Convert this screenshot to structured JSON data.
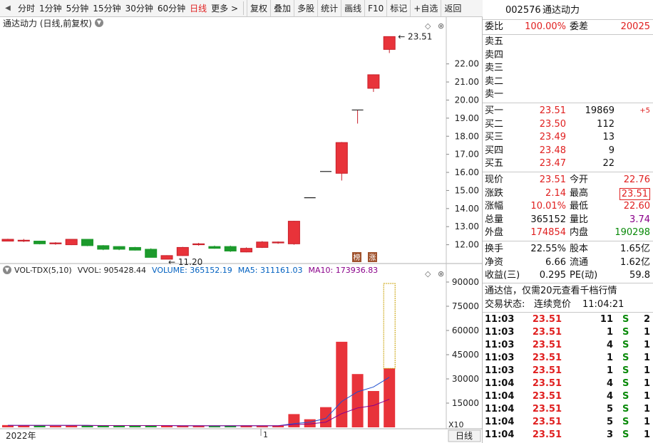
{
  "toolbar": {
    "tabs": [
      "分时",
      "1分钟",
      "5分钟",
      "15分钟",
      "30分钟",
      "60分钟",
      "日线",
      "更多 >"
    ],
    "active_tab": "日线",
    "buttons": [
      "复权",
      "叠加",
      "多股",
      "统计",
      "画线",
      "F10",
      "标记",
      "+自选",
      "返回"
    ]
  },
  "price_panel": {
    "title": "通达动力 (日线,前复权)",
    "y_ticks": [
      "22.00",
      "21.00",
      "20.00",
      "19.00",
      "18.00",
      "17.00",
      "16.00",
      "15.00",
      "14.00",
      "13.00",
      "12.00"
    ],
    "high_label": "23.51",
    "low_label": "11.20",
    "badge_1": "榜",
    "badge_2": "涨"
  },
  "volume_panel": {
    "indicator": "VOL-TDX(5,10)",
    "vvol": "VVOL: 905428.44",
    "volume": "VOLUME: 365152.19",
    "ma5": "MA5: 311161.03",
    "ma10": "MA10: 173936.83",
    "y_ticks": [
      "90000",
      "75000",
      "60000",
      "45000",
      "30000",
      "15000"
    ],
    "multiplier": "X10",
    "x_start": "2022年",
    "x_mark": "1",
    "period": "日线"
  },
  "chart_data": {
    "type": "candlestick",
    "ylim": [
      11.0,
      23.8
    ],
    "candles": [
      {
        "o": 12.2,
        "c": 12.3,
        "h": 12.33,
        "l": 12.18
      },
      {
        "o": 12.2,
        "c": 12.25,
        "h": 12.32,
        "l": 12.15
      },
      {
        "o": 12.2,
        "c": 12.05,
        "h": 12.22,
        "l": 12.02
      },
      {
        "o": 12.05,
        "c": 12.1,
        "h": 12.14,
        "l": 12.0
      },
      {
        "o": 12.0,
        "c": 12.3,
        "h": 12.32,
        "l": 11.98
      },
      {
        "o": 12.3,
        "c": 11.95,
        "h": 12.32,
        "l": 11.92
      },
      {
        "o": 11.95,
        "c": 11.75,
        "h": 11.98,
        "l": 11.7
      },
      {
        "o": 11.9,
        "c": 11.75,
        "h": 11.92,
        "l": 11.7
      },
      {
        "o": 11.85,
        "c": 11.7,
        "h": 11.88,
        "l": 11.68
      },
      {
        "o": 11.75,
        "c": 11.3,
        "h": 11.8,
        "l": 11.3
      },
      {
        "o": 11.2,
        "c": 11.4,
        "h": 11.42,
        "l": 11.2
      },
      {
        "o": 11.4,
        "c": 11.85,
        "h": 11.88,
        "l": 11.38
      },
      {
        "o": 12.0,
        "c": 12.05,
        "h": 12.1,
        "l": 11.95
      },
      {
        "o": 11.9,
        "c": 11.8,
        "h": 11.95,
        "l": 11.78
      },
      {
        "o": 11.9,
        "c": 11.65,
        "h": 11.95,
        "l": 11.6
      },
      {
        "o": 11.6,
        "c": 11.8,
        "h": 11.85,
        "l": 11.58
      },
      {
        "o": 11.85,
        "c": 12.15,
        "h": 12.2,
        "l": 11.82
      },
      {
        "o": 12.1,
        "c": 12.15,
        "h": 12.18,
        "l": 12.05
      },
      {
        "o": 12.05,
        "c": 13.3,
        "h": 13.32,
        "l": 12.0
      },
      {
        "o": 14.6,
        "c": 14.6,
        "h": 14.6,
        "l": 14.6
      },
      {
        "o": 16.05,
        "c": 16.05,
        "h": 16.05,
        "l": 16.05
      },
      {
        "o": 15.95,
        "c": 17.65,
        "h": 17.68,
        "l": 15.55
      },
      {
        "o": 19.45,
        "c": 19.45,
        "h": 19.45,
        "l": 18.7
      },
      {
        "o": 20.65,
        "c": 21.4,
        "h": 21.42,
        "l": 20.45
      },
      {
        "o": 22.8,
        "c": 23.51,
        "h": 23.51,
        "l": 22.6
      }
    ],
    "volumes": [
      1400,
      1300,
      1100,
      900,
      1200,
      1300,
      1100,
      900,
      1000,
      1200,
      900,
      1100,
      1000,
      800,
      900,
      1200,
      800,
      1000,
      8200,
      5000,
      12500,
      53000,
      33000,
      22500,
      36500
    ],
    "ma5": [
      1200,
      1200,
      1200,
      1200,
      1200,
      1200,
      1100,
      1100,
      1100,
      1100,
      1100,
      1000,
      1000,
      1000,
      1000,
      1000,
      1000,
      1000,
      2300,
      3200,
      5500,
      16000,
      22000,
      25000,
      31000
    ],
    "ma10": [
      1200,
      1200,
      1200,
      1200,
      1200,
      1200,
      1100,
      1100,
      1100,
      1100,
      1100,
      1000,
      1000,
      1000,
      1000,
      1000,
      1000,
      1000,
      1700,
      2100,
      3200,
      8500,
      12000,
      13500,
      17400
    ],
    "vol_ylim": [
      0,
      90000
    ]
  },
  "quote": {
    "code": "002576",
    "name": "通达动力",
    "weibi_label": "委比",
    "weibi": "100.00%",
    "weicha_label": "委差",
    "weicha": "20025",
    "sell": [
      {
        "label": "卖五"
      },
      {
        "label": "卖四"
      },
      {
        "label": "卖三"
      },
      {
        "label": "卖二"
      },
      {
        "label": "卖一"
      }
    ],
    "buy": [
      {
        "label": "买一",
        "price": "23.51",
        "vol": "19869",
        "chg": "+5"
      },
      {
        "label": "买二",
        "price": "23.50",
        "vol": "112",
        "chg": ""
      },
      {
        "label": "买三",
        "price": "23.49",
        "vol": "13",
        "chg": ""
      },
      {
        "label": "买四",
        "price": "23.48",
        "vol": "9",
        "chg": ""
      },
      {
        "label": "买五",
        "price": "23.47",
        "vol": "22",
        "chg": ""
      }
    ],
    "stats": [
      {
        "l1": "现价",
        "v1": "23.51",
        "c1": "red",
        "l2": "今开",
        "v2": "22.76",
        "c2": "red"
      },
      {
        "l1": "涨跌",
        "v1": "2.14",
        "c1": "red",
        "l2": "最高",
        "v2": "23.51",
        "c2": "red"
      },
      {
        "l1": "涨幅",
        "v1": "10.01%",
        "c1": "red",
        "l2": "最低",
        "v2": "22.60",
        "c2": "red"
      },
      {
        "l1": "总量",
        "v1": "365152",
        "c1": "dark",
        "l2": "量比",
        "v2": "3.74",
        "c2": "purple"
      },
      {
        "l1": "外盘",
        "v1": "174854",
        "c1": "red",
        "l2": "内盘",
        "v2": "190298",
        "c2": "green"
      }
    ],
    "stats2": [
      {
        "l1": "换手",
        "v1": "22.55%",
        "l2": "股本",
        "v2": "1.65亿"
      },
      {
        "l1": "净资",
        "v1": "6.66",
        "l2": "流通",
        "v2": "1.62亿"
      },
      {
        "l1": "收益(三)",
        "v1": "0.295",
        "l2": "PE(动)",
        "v2": "59.8"
      }
    ],
    "promo": "通达信，仅需20元查看千档行情",
    "status_label": "交易状态:",
    "status": "连续竞价",
    "status_time": "11:04:21",
    "ticks": [
      {
        "t": "11:03",
        "p": "23.51",
        "v": "11",
        "s": "S",
        "n": "2"
      },
      {
        "t": "11:03",
        "p": "23.51",
        "v": "1",
        "s": "S",
        "n": "1"
      },
      {
        "t": "11:03",
        "p": "23.51",
        "v": "4",
        "s": "S",
        "n": "1"
      },
      {
        "t": "11:03",
        "p": "23.51",
        "v": "1",
        "s": "S",
        "n": "1"
      },
      {
        "t": "11:03",
        "p": "23.51",
        "v": "1",
        "s": "S",
        "n": "1"
      },
      {
        "t": "11:04",
        "p": "23.51",
        "v": "4",
        "s": "S",
        "n": "1"
      },
      {
        "t": "11:04",
        "p": "23.51",
        "v": "4",
        "s": "S",
        "n": "1"
      },
      {
        "t": "11:04",
        "p": "23.51",
        "v": "5",
        "s": "S",
        "n": "1"
      },
      {
        "t": "11:04",
        "p": "23.51",
        "v": "5",
        "s": "S",
        "n": "1"
      },
      {
        "t": "11:04",
        "p": "23.51",
        "v": "3",
        "s": "S",
        "n": "1"
      }
    ]
  }
}
